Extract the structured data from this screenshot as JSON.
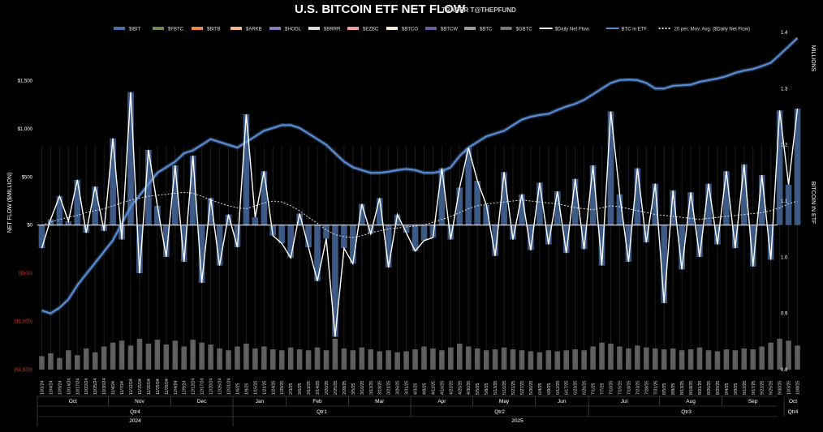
{
  "title": "U.S. BITCOIN ETF NET FLOW",
  "subtitle": "TRADER T@THEPFUND",
  "colors": {
    "IBIT": "#4a6fa5",
    "FBTC": "#6e8a4e",
    "BITB": "#e8894a",
    "ARKB": "#f2b48a",
    "HODL": "#8a78b8",
    "BRRR": "#dddddd",
    "EZBC": "#e8a0a0",
    "BTCO": "#f5ead0",
    "BTCW": "#6a5a9a",
    "BTC": "#9a9a9a",
    "GBTC": "#777777",
    "daily": "#ffffff",
    "etf": "#5b8fd6",
    "avg": "#dddddd",
    "volume": "#aaaaaa",
    "neg": "#c0392b"
  },
  "chart_data": {
    "type": "bar",
    "title": "U.S. BITCOIN ETF NET FLOW",
    "ylabel": "NET FLOW ($MILLION)",
    "y2label": "BITCOIN IN ETF",
    "y2unit": "MILLIONS",
    "ylim": [
      -1500,
      2000
    ],
    "y2lim": [
      0.8,
      1.4
    ],
    "yticks": [
      "$1,500",
      "$1,000",
      "$500",
      "$0",
      "($500)",
      "($1,000)",
      "($1,500)"
    ],
    "y2ticks": [
      "1.4",
      "1.3",
      "1.2",
      "1.1",
      "1.0",
      "0.9",
      "0.8"
    ],
    "legend_position": "top",
    "legend": [
      "$IBIT",
      "$FBTC",
      "$BITB",
      "$ARKB",
      "$HODL",
      "$BRRR",
      "$EZBC",
      "$BTCO",
      "$BTCW",
      "$BTC",
      "$GBTC",
      "$Daily Net Flow",
      "BTC in ETF",
      "20 per. Mov. Avg. ($Daily Net Flow)"
    ],
    "x": [
      "10/1/24",
      "10/4/24",
      "10/9/24",
      "10/14/24",
      "10/17/24",
      "10/22/24",
      "10/25/24",
      "10/30/24",
      "11/4/24",
      "11/7/24",
      "11/12/24",
      "11/15/24",
      "11/20/24",
      "11/25/24",
      "11/29/24",
      "12/4/24",
      "12/9/24",
      "12/12/24",
      "12/17/24",
      "12/20/24",
      "12/26/24",
      "12/31/24",
      "1/6/25",
      "1/9/25",
      "1/15/25",
      "1/21/25",
      "1/24/25",
      "1/29/25",
      "2/3/25",
      "2/6/25",
      "2/11/25",
      "2/14/25",
      "2/20/25",
      "2/25/25",
      "2/28/25",
      "3/5/25",
      "3/10/25",
      "3/13/25",
      "3/18/25",
      "3/21/25",
      "3/26/25",
      "3/31/25",
      "4/3/25",
      "4/8/25",
      "4/11/25",
      "4/16/25",
      "4/22/25",
      "4/25/25",
      "4/30/25",
      "5/5/25",
      "5/8/25",
      "5/13/25",
      "5/16/25",
      "5/21/25",
      "5/27/25",
      "5/30/25",
      "6/4/25",
      "6/9/25",
      "6/12/25",
      "6/17/25",
      "6/23/25",
      "6/26/25",
      "7/1/25",
      "7/7/25",
      "7/10/25",
      "7/15/25",
      "7/18/25",
      "7/23/25",
      "7/28/25",
      "7/31/25",
      "8/5/25",
      "8/8/25",
      "8/13/25",
      "8/18/25",
      "8/21/25",
      "8/26/25",
      "8/29/25",
      "9/4/25",
      "9/9/25",
      "9/12/25",
      "9/17/25",
      "9/22/25",
      "9/25/25",
      "9/30/25",
      "10/3/25",
      "10/8/25"
    ],
    "series": [
      {
        "name": "$Daily Net Flow",
        "values": [
          -240,
          60,
          300,
          40,
          470,
          -80,
          400,
          -60,
          900,
          -150,
          1380,
          -500,
          780,
          200,
          -330,
          620,
          -380,
          720,
          -600,
          280,
          -420,
          110,
          -230,
          1150,
          80,
          560,
          -110,
          -190,
          -340,
          120,
          -230,
          -580,
          -140,
          -1160,
          -240,
          -400,
          220,
          -90,
          280,
          -440,
          110,
          -80,
          -270,
          -160,
          -130,
          590,
          -150,
          390,
          800,
          460,
          210,
          -320,
          550,
          -150,
          320,
          -260,
          440,
          -200,
          350,
          -290,
          480,
          -250,
          620,
          -420,
          1180,
          320,
          -380,
          590,
          -180,
          430,
          -810,
          360,
          -460,
          340,
          -330,
          430,
          -200,
          560,
          -240,
          630,
          -430,
          520,
          -360,
          1190,
          420,
          1210
        ]
      },
      {
        "name": "BTC in ETF",
        "values": [
          0.905,
          0.9,
          0.91,
          0.925,
          0.95,
          0.97,
          0.99,
          1.01,
          1.03,
          1.06,
          1.09,
          1.11,
          1.13,
          1.15,
          1.16,
          1.17,
          1.185,
          1.19,
          1.2,
          1.21,
          1.205,
          1.2,
          1.195,
          1.205,
          1.215,
          1.225,
          1.23,
          1.235,
          1.235,
          1.23,
          1.22,
          1.21,
          1.2,
          1.185,
          1.17,
          1.16,
          1.155,
          1.15,
          1.15,
          1.152,
          1.155,
          1.157,
          1.155,
          1.15,
          1.15,
          1.153,
          1.16,
          1.18,
          1.195,
          1.205,
          1.215,
          1.22,
          1.225,
          1.235,
          1.245,
          1.25,
          1.253,
          1.255,
          1.262,
          1.268,
          1.273,
          1.28,
          1.29,
          1.3,
          1.31,
          1.315,
          1.316,
          1.315,
          1.31,
          1.3,
          1.3,
          1.305,
          1.306,
          1.307,
          1.312,
          1.315,
          1.318,
          1.322,
          1.328,
          1.332,
          1.335,
          1.34,
          1.346,
          1.36,
          1.375,
          1.39
        ]
      },
      {
        "name": "20 per. Mov. Avg. ($Daily Net Flow)",
        "values": [
          0,
          30,
          60,
          80,
          100,
          130,
          150,
          170,
          200,
          230,
          260,
          280,
          300,
          310,
          320,
          330,
          340,
          330,
          300,
          260,
          230,
          200,
          180,
          170,
          200,
          230,
          250,
          240,
          200,
          150,
          80,
          20,
          -50,
          -100,
          -120,
          -130,
          -110,
          -80,
          -60,
          -40,
          -30,
          -20,
          -10,
          0,
          30,
          60,
          90,
          130,
          170,
          200,
          220,
          230,
          240,
          250,
          260,
          250,
          240,
          230,
          220,
          200,
          180,
          170,
          160,
          180,
          200,
          190,
          170,
          150,
          130,
          110,
          100,
          90,
          80,
          70,
          60,
          70,
          80,
          90,
          100,
          110,
          120,
          130,
          150,
          180,
          220,
          250
        ]
      },
      {
        "name": "volume",
        "values": [
          -1360,
          -1330,
          -1380,
          -1300,
          -1350,
          -1280,
          -1320,
          -1260,
          -1220,
          -1200,
          -1250,
          -1180,
          -1230,
          -1190,
          -1240,
          -1200,
          -1260,
          -1190,
          -1220,
          -1240,
          -1280,
          -1300,
          -1260,
          -1230,
          -1280,
          -1260,
          -1290,
          -1300,
          -1270,
          -1290,
          -1300,
          -1270,
          -1300,
          -1180,
          -1280,
          -1300,
          -1270,
          -1290,
          -1310,
          -1300,
          -1320,
          -1310,
          -1290,
          -1260,
          -1280,
          -1300,
          -1270,
          -1230,
          -1260,
          -1280,
          -1300,
          -1290,
          -1270,
          -1290,
          -1300,
          -1310,
          -1320,
          -1300,
          -1310,
          -1300,
          -1290,
          -1300,
          -1260,
          -1220,
          -1230,
          -1260,
          -1280,
          -1250,
          -1270,
          -1280,
          -1290,
          -1280,
          -1300,
          -1290,
          -1270,
          -1300,
          -1310,
          -1290,
          -1300,
          -1280,
          -1290,
          -1260,
          -1220,
          -1180,
          -1200,
          -1250
        ]
      }
    ],
    "months": [
      {
        "label": "Oct",
        "from": 0,
        "to": 7
      },
      {
        "label": "Nov",
        "from": 8,
        "to": 14
      },
      {
        "label": "Dec",
        "from": 15,
        "to": 21
      },
      {
        "label": "Jan",
        "from": 22,
        "to": 27
      },
      {
        "label": "Feb",
        "from": 28,
        "to": 34
      },
      {
        "label": "Mar",
        "from": 35,
        "to": 41
      },
      {
        "label": "Apr",
        "from": 42,
        "to": 48
      },
      {
        "label": "May",
        "from": 49,
        "to": 55
      },
      {
        "label": "Jun",
        "from": 56,
        "to": 61
      },
      {
        "label": "Jul",
        "from": 62,
        "to": 69
      },
      {
        "label": "Aug",
        "from": 70,
        "to": 76
      },
      {
        "label": "Sep",
        "from": 77,
        "to": 83
      },
      {
        "label": "Oct",
        "from": 84,
        "to": 85
      }
    ],
    "quarters": [
      {
        "label": "Qtr4",
        "from": 0,
        "to": 21
      },
      {
        "label": "Qtr1",
        "from": 22,
        "to": 41
      },
      {
        "label": "Qtr2",
        "from": 42,
        "to": 61
      },
      {
        "label": "Qtr3",
        "from": 62,
        "to": 83
      },
      {
        "label": "Qtr4",
        "from": 84,
        "to": 85
      }
    ],
    "years": [
      {
        "label": "2024",
        "from": 0,
        "to": 21
      },
      {
        "label": "2025",
        "from": 22,
        "to": 85
      }
    ]
  }
}
